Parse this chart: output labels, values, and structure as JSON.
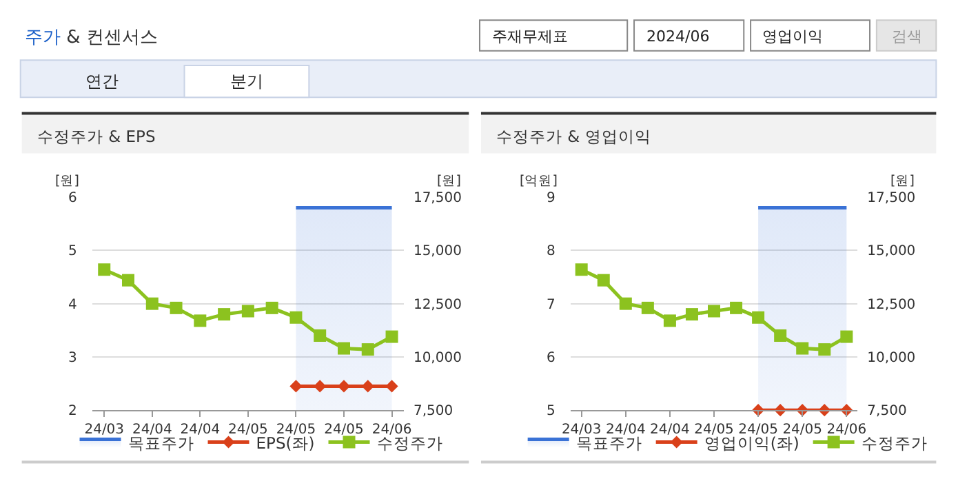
{
  "chart_data": [
    {
      "type": "other",
      "title": "주가 & 컨센서스",
      "annotations": [
        "주재무제표",
        "2024/06",
        "영업이익",
        "검색",
        "연간",
        "분기"
      ]
    },
    {
      "type": "line",
      "title": "수정주가 & EPS",
      "ylabel": "[원]",
      "y2label": "[원]",
      "categories": [
        "24/03",
        null,
        "24/04",
        null,
        "24/04",
        null,
        "24/05",
        null,
        "24/05",
        null,
        "24/05",
        null,
        "24/06"
      ],
      "ylim": [
        2,
        6
      ],
      "yticks": [
        2,
        3,
        4,
        5,
        6
      ],
      "y2lim": [
        7500,
        17500
      ],
      "y2ticks": [
        {
          "value": 7500,
          "label": "7,500"
        },
        {
          "value": 10000,
          "label": "10,000"
        },
        {
          "value": 12500,
          "label": "12,500"
        },
        {
          "value": 15000,
          "label": "15,000"
        },
        {
          "value": 17500,
          "label": "17,500"
        }
      ],
      "grid": "y",
      "legend": "bottom",
      "series": [
        {
          "name": "목표주가",
          "type": "area",
          "axis": "y2",
          "color": "#3a72d6",
          "marker": "none",
          "values": [
            null,
            null,
            null,
            null,
            null,
            null,
            null,
            null,
            17000,
            17000,
            17000,
            17000,
            17000
          ]
        },
        {
          "name": "EPS(좌)",
          "type": "line",
          "axis": "y",
          "color": "#d9401a",
          "marker": "diamond",
          "values": [
            null,
            null,
            null,
            null,
            null,
            null,
            null,
            null,
            2.45,
            2.45,
            2.45,
            2.45,
            2.45
          ]
        },
        {
          "name": "수정주가",
          "type": "line",
          "axis": "y2",
          "color": "#8cc21f",
          "marker": "square",
          "values": [
            14100,
            13600,
            12500,
            12300,
            11700,
            12000,
            12150,
            12300,
            11850,
            11000,
            10400,
            10350,
            10950
          ]
        }
      ]
    },
    {
      "type": "line",
      "title": "수정주가 & 영업이익",
      "ylabel": "[억원]",
      "y2label": "[원]",
      "categories": [
        "24/03",
        null,
        "24/04",
        null,
        "24/04",
        null,
        "24/05",
        null,
        "24/05",
        null,
        "24/05",
        null,
        "24/06"
      ],
      "ylim": [
        5,
        9
      ],
      "yticks": [
        5,
        6,
        7,
        8,
        9
      ],
      "y2lim": [
        7500,
        17500
      ],
      "y2ticks": [
        {
          "value": 7500,
          "label": "7,500"
        },
        {
          "value": 10000,
          "label": "10,000"
        },
        {
          "value": 12500,
          "label": "12,500"
        },
        {
          "value": 15000,
          "label": "15,000"
        },
        {
          "value": 17500,
          "label": "17,500"
        }
      ],
      "grid": "y",
      "legend": "bottom",
      "series": [
        {
          "name": "목표주가",
          "type": "area",
          "axis": "y2",
          "color": "#3a72d6",
          "marker": "none",
          "values": [
            null,
            null,
            null,
            null,
            null,
            null,
            null,
            null,
            17000,
            17000,
            17000,
            17000,
            17000
          ]
        },
        {
          "name": "영업이익(좌)",
          "type": "line",
          "axis": "y",
          "color": "#d9401a",
          "marker": "diamond",
          "values": [
            null,
            null,
            null,
            null,
            null,
            null,
            null,
            null,
            5.0,
            5.0,
            5.0,
            5.0,
            5.0
          ]
        },
        {
          "name": "수정주가",
          "type": "line",
          "axis": "y2",
          "color": "#8cc21f",
          "marker": "square",
          "values": [
            14100,
            13600,
            12500,
            12300,
            11700,
            12000,
            12150,
            12300,
            11850,
            11000,
            10400,
            10350,
            10950
          ]
        }
      ]
    }
  ]
}
